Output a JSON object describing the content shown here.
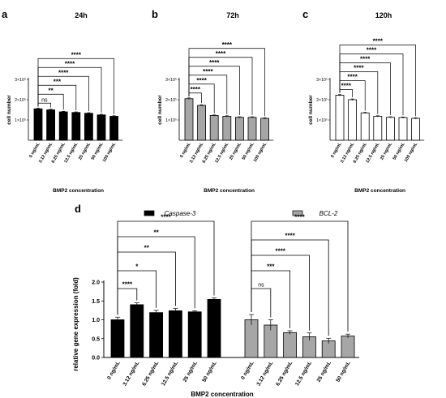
{
  "chart_data": [
    {
      "panel": "a",
      "type": "bar",
      "title": "24h",
      "xlabel": "BMP2 concentration",
      "ylabel": "cell number",
      "yticks": [
        "1×10⁵",
        "2×10⁵",
        "3×10⁵"
      ],
      "ylim": [
        0,
        300000
      ],
      "categories": [
        "0 ng/mL",
        "3.12 ng/mL",
        "6.25 ng/mL",
        "12.5 ng/mL",
        "25 ng/mL",
        "50 ng/mL",
        "100 ng/mL"
      ],
      "values": [
        155000,
        150000,
        140000,
        137000,
        133000,
        125000,
        118000
      ],
      "errors": [
        4000,
        3000,
        3000,
        3000,
        3000,
        3000,
        3000
      ],
      "fill": "#000000",
      "significance": [
        "ns",
        "**",
        "***",
        "****",
        "****",
        "****"
      ]
    },
    {
      "panel": "b",
      "type": "bar",
      "title": "72h",
      "xlabel": "BMP2 concentration",
      "ylabel": "cell number",
      "yticks": [
        "1×10⁵",
        "2×10⁵",
        "3×10⁵"
      ],
      "ylim": [
        0,
        300000
      ],
      "categories": [
        "0 ng/mL",
        "3.12 ng/mL",
        "6.25 ng/mL",
        "12.5 ng/mL",
        "25 ng/mL",
        "50 ng/mL",
        "100 ng/mL"
      ],
      "values": [
        205000,
        172000,
        122000,
        118000,
        113000,
        113000,
        108000
      ],
      "errors": [
        4000,
        3000,
        3000,
        3000,
        3000,
        3000,
        3000
      ],
      "fill": "#a6a6a6",
      "significance": [
        "****",
        "****",
        "****",
        "****",
        "****",
        "****"
      ]
    },
    {
      "panel": "c",
      "type": "bar",
      "title": "120h",
      "xlabel": "BMP2 concentration",
      "ylabel": "cell number",
      "yticks": [
        "1×10⁵",
        "2×10⁵",
        "3×10⁵"
      ],
      "ylim": [
        0,
        300000
      ],
      "categories": [
        "0 ng/mL",
        "3.12 ng/mL",
        "6.25 ng/mL",
        "12.5 ng/mL",
        "25 ng/mL",
        "50 ng/mL",
        "100 ng/mL"
      ],
      "values": [
        222000,
        200000,
        135000,
        118000,
        113000,
        112000,
        108000
      ],
      "errors": [
        4000,
        4000,
        3000,
        3000,
        3000,
        3000,
        3000
      ],
      "fill": "#ffffff",
      "significance": [
        "****",
        "****",
        "****",
        "****",
        "****",
        "****"
      ]
    },
    {
      "panel": "d",
      "type": "bar",
      "xlabel": "BMP2 concentration",
      "ylabel": "relative gene expression (fold)",
      "ylim": [
        0,
        2.0
      ],
      "yticks": [
        "0.0",
        "0.5",
        "1.0",
        "1.5",
        "2.0"
      ],
      "categories": [
        "0 ng/mL",
        "3.12 ng/mL",
        "6.25 ng/mL",
        "12.5 ng/mL",
        "25 ng/mL",
        "50 ng/mL"
      ],
      "series": [
        {
          "name": "Caspase-3",
          "fill": "#000000",
          "values": [
            1.0,
            1.4,
            1.19,
            1.24,
            1.21,
            1.54
          ],
          "errors": [
            0.07,
            0.05,
            0.06,
            0.06,
            0.03,
            0.04
          ],
          "significance": [
            "****",
            "*",
            "**",
            "**",
            "****"
          ]
        },
        {
          "name": "BCL-2",
          "fill": "#a6a6a6",
          "values": [
            1.0,
            0.86,
            0.66,
            0.55,
            0.44,
            0.57
          ],
          "errors": [
            0.14,
            0.14,
            0.05,
            0.1,
            0.07,
            0.05
          ],
          "significance": [
            "ns",
            "***",
            "****",
            "****",
            "****"
          ]
        }
      ]
    }
  ],
  "panel_labels": [
    "a",
    "b",
    "c",
    "d"
  ]
}
